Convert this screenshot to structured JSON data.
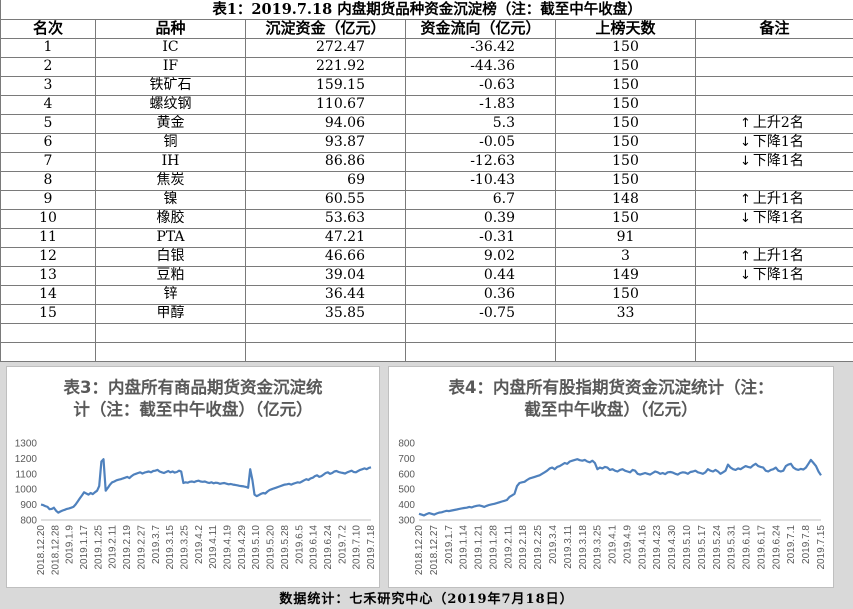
{
  "table": {
    "title": "表1：2019.7.18 内盘期货品种资金沉淀榜（注：截至中午收盘）",
    "headers": [
      "名次",
      "品种",
      "沉淀资金（亿元）",
      "资金流向（亿元）",
      "上榜天数",
      "备注"
    ],
    "rows": [
      {
        "rank": "1",
        "name": "IC",
        "fund": "272.47",
        "flow": "-36.42",
        "days": "150",
        "note": ""
      },
      {
        "rank": "2",
        "name": "IF",
        "fund": "221.92",
        "flow": "-44.36",
        "days": "150",
        "note": ""
      },
      {
        "rank": "3",
        "name": "铁矿石",
        "fund": "159.15",
        "flow": "-0.63",
        "days": "150",
        "note": ""
      },
      {
        "rank": "4",
        "name": "螺纹钢",
        "fund": "110.67",
        "flow": "-1.83",
        "days": "150",
        "note": ""
      },
      {
        "rank": "5",
        "name": "黄金",
        "fund": "94.06",
        "flow": "5.3",
        "days": "150",
        "note": "上升2名",
        "dir": "up"
      },
      {
        "rank": "6",
        "name": "铜",
        "fund": "93.87",
        "flow": "-0.05",
        "days": "150",
        "note": "下降1名",
        "dir": "down"
      },
      {
        "rank": "7",
        "name": "IH",
        "fund": "86.86",
        "flow": "-12.63",
        "days": "150",
        "note": "下降1名",
        "dir": "down"
      },
      {
        "rank": "8",
        "name": "焦炭",
        "fund": "69",
        "flow": "-10.43",
        "days": "150",
        "note": ""
      },
      {
        "rank": "9",
        "name": "镍",
        "fund": "60.55",
        "flow": "6.7",
        "days": "148",
        "note": "上升1名",
        "dir": "up"
      },
      {
        "rank": "10",
        "name": "橡胶",
        "fund": "53.63",
        "flow": "0.39",
        "days": "150",
        "note": "下降1名",
        "dir": "down"
      },
      {
        "rank": "11",
        "name": "PTA",
        "fund": "47.21",
        "flow": "-0.31",
        "days": "91",
        "note": ""
      },
      {
        "rank": "12",
        "name": "白银",
        "fund": "46.66",
        "flow": "9.02",
        "days": "3",
        "note": "上升1名",
        "dir": "up"
      },
      {
        "rank": "13",
        "name": "豆粕",
        "fund": "39.04",
        "flow": "0.44",
        "days": "149",
        "note": "下降1名",
        "dir": "down"
      },
      {
        "rank": "14",
        "name": "锌",
        "fund": "36.44",
        "flow": "0.36",
        "days": "150",
        "note": ""
      },
      {
        "rank": "15",
        "name": "甲醇",
        "fund": "35.85",
        "flow": "-0.75",
        "days": "33",
        "note": ""
      }
    ]
  },
  "chart_data": [
    {
      "type": "line",
      "title": "表3：内盘所有商品期货资金沉淀统计（注：截至中午收盘）（亿元）",
      "title_lines": [
        "表3：内盘所有商品期货资金沉淀统",
        "计（注：截至中午收盘）（亿元）"
      ],
      "ylim": [
        800,
        1300
      ],
      "yticks": [
        800,
        900,
        1000,
        1100,
        1200,
        1300
      ],
      "color": "#4f81bd",
      "x_labels": [
        "2018.12.20",
        "2018.12.28",
        "2019.1.9",
        "2019.1.17",
        "2019.1.25",
        "2019.2.11",
        "2019.2.19",
        "2019.2.27",
        "2019.3.7",
        "2019.3.15",
        "2019.3.25",
        "2019.4.2",
        "2019.4.11",
        "2019.4.19",
        "2019.4.29",
        "2019.5.10",
        "2019.5.20",
        "2019.5.28",
        "2019.6.5",
        "2019.6.14",
        "2019.6.24",
        "2019.7.2",
        "2019.7.10",
        "2019.7.18"
      ],
      "values": [
        900,
        897,
        890,
        885,
        870,
        872,
        880,
        860,
        848,
        855,
        862,
        866,
        872,
        875,
        880,
        885,
        900,
        920,
        940,
        960,
        980,
        972,
        965,
        975,
        968,
        980,
        990,
        1020,
        1180,
        1195,
        990,
        1010,
        1030,
        1045,
        1050,
        1058,
        1062,
        1065,
        1070,
        1075,
        1080,
        1072,
        1085,
        1095,
        1100,
        1105,
        1110,
        1102,
        1108,
        1112,
        1115,
        1110,
        1118,
        1120,
        1125,
        1115,
        1110,
        1105,
        1112,
        1118,
        1110,
        1115,
        1108,
        1112,
        1120,
        1115,
        1040,
        1045,
        1042,
        1048,
        1050,
        1046,
        1052,
        1055,
        1050,
        1048,
        1050,
        1044,
        1040,
        1045,
        1038,
        1042,
        1040,
        1035,
        1038,
        1040,
        1036,
        1032,
        1034,
        1030,
        1028,
        1025,
        1022,
        1020,
        1018,
        1015,
        1010,
        1130,
        1060,
        965,
        955,
        962,
        970,
        975,
        972,
        985,
        995,
        1000,
        1005,
        1010,
        1015,
        1020,
        1025,
        1030,
        1032,
        1035,
        1030,
        1036,
        1040,
        1045,
        1042,
        1050,
        1058,
        1065,
        1060,
        1070,
        1075,
        1085,
        1090,
        1080,
        1085,
        1095,
        1105,
        1110,
        1100,
        1105,
        1115,
        1118,
        1112,
        1108,
        1105,
        1102,
        1110,
        1115,
        1120,
        1112,
        1110,
        1118,
        1125,
        1130,
        1135,
        1130,
        1138,
        1142
      ]
    },
    {
      "type": "line",
      "title": "表4：内盘所有股指期货资金沉淀统计（注：截至中午收盘）（亿元）",
      "title_lines": [
        "表4：内盘所有股指期货资金沉淀统计（注：",
        "截至中午收盘）（亿元）"
      ],
      "ylim": [
        300,
        800
      ],
      "yticks": [
        300,
        400,
        500,
        600,
        700,
        800
      ],
      "color": "#4f81bd",
      "x_labels": [
        "2018.12.20",
        "2018.12.27",
        "2019.1.7",
        "2019.1.14",
        "2019.1.21",
        "2019.1.28",
        "2019.2.11",
        "2019.2.18",
        "2019.2.25",
        "2019.3.4",
        "2019.3.11",
        "2019.3.18",
        "2019.3.25",
        "2019.4.1",
        "2019.4.9",
        "2019.4.16",
        "2019.4.23",
        "2019.4.30",
        "2019.5.10",
        "2019.5.17",
        "2019.5.24",
        "2019.5.31",
        "2019.6.10",
        "2019.6.17",
        "2019.6.24",
        "2019.7.1",
        "2019.7.8",
        "2019.7.15"
      ],
      "values": [
        340,
        335,
        330,
        338,
        345,
        340,
        335,
        342,
        348,
        350,
        355,
        360,
        358,
        362,
        365,
        368,
        372,
        375,
        378,
        380,
        385,
        382,
        388,
        392,
        395,
        390,
        385,
        392,
        398,
        402,
        405,
        410,
        415,
        420,
        425,
        430,
        450,
        460,
        470,
        520,
        540,
        545,
        548,
        560,
        570,
        575,
        580,
        585,
        590,
        600,
        610,
        620,
        635,
        640,
        630,
        645,
        650,
        660,
        670,
        665,
        680,
        685,
        690,
        695,
        688,
        685,
        690,
        680,
        675,
        685,
        670,
        630,
        640,
        635,
        645,
        640,
        625,
        630,
        620,
        615,
        625,
        630,
        620,
        615,
        610,
        625,
        620,
        600,
        595,
        600,
        605,
        600,
        595,
        605,
        615,
        610,
        600,
        605,
        598,
        610,
        612,
        608,
        600,
        595,
        605,
        610,
        608,
        600,
        612,
        615,
        620,
        610,
        605,
        600,
        610,
        630,
        620,
        615,
        625,
        615,
        600,
        610,
        620,
        660,
        640,
        630,
        625,
        635,
        630,
        640,
        650,
        645,
        640,
        655,
        665,
        650,
        645,
        640,
        620,
        615,
        625,
        630,
        640,
        620,
        615,
        620,
        650,
        660,
        665,
        640,
        630,
        625,
        632,
        628,
        640,
        665,
        690,
        670,
        650,
        615,
        590
      ]
    }
  ],
  "footer": "数据统计：七禾研究中心（2019年7月18日）"
}
